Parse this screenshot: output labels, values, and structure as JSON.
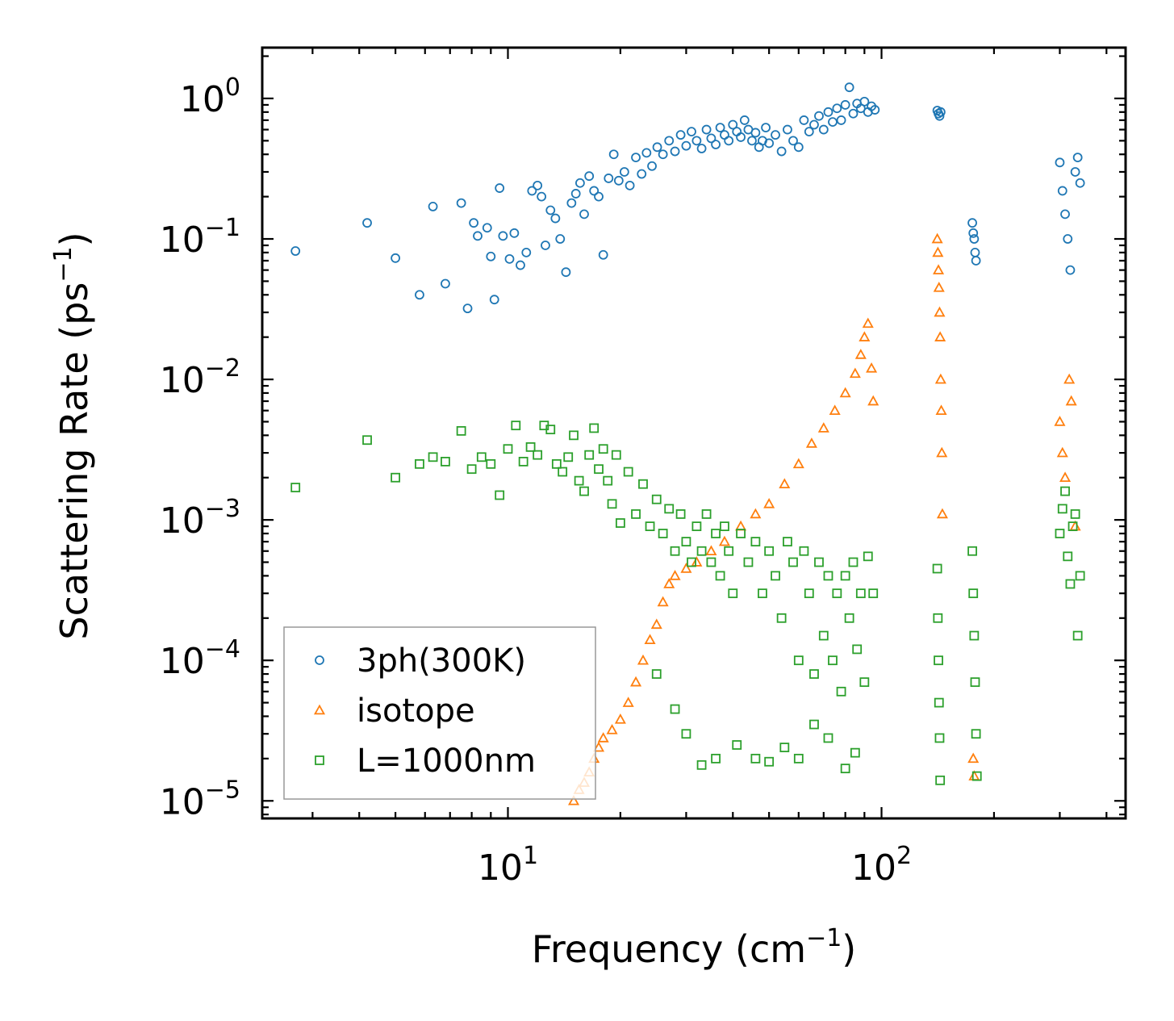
{
  "chart_data": {
    "type": "scatter",
    "title": "",
    "xlabel": "Frequency (cm",
    "xlabel_sup": "−1",
    "xlabel_tail": ")",
    "ylabel": "Scattering Rate (ps",
    "ylabel_sup": "−1",
    "ylabel_tail": ")",
    "xscale": "log",
    "yscale": "log",
    "xlim": [
      2.2,
      450
    ],
    "ylim": [
      7.5e-06,
      2.3
    ],
    "x_tick_labels": [
      {
        "value": 10,
        "base": "10",
        "exp": "1"
      },
      {
        "value": 100,
        "base": "10",
        "exp": "2"
      }
    ],
    "y_tick_labels": [
      {
        "value": 1,
        "base": "10",
        "exp": "0"
      },
      {
        "value": 0.1,
        "base": "10",
        "exp": "−1"
      },
      {
        "value": 0.01,
        "base": "10",
        "exp": "−2"
      },
      {
        "value": 0.001,
        "base": "10",
        "exp": "−3"
      },
      {
        "value": 0.0001,
        "base": "10",
        "exp": "−4"
      },
      {
        "value": 1e-05,
        "base": "10",
        "exp": "−5"
      }
    ],
    "legend_position": "lower-left",
    "series": [
      {
        "name": "3ph(300K)",
        "marker": "circle",
        "color": "#1f77b4",
        "points": [
          [
            2.7,
            0.082
          ],
          [
            4.2,
            0.13
          ],
          [
            5.0,
            0.073
          ],
          [
            5.8,
            0.04
          ],
          [
            6.3,
            0.17
          ],
          [
            6.8,
            0.048
          ],
          [
            7.5,
            0.18
          ],
          [
            7.8,
            0.032
          ],
          [
            8.1,
            0.13
          ],
          [
            8.3,
            0.105
          ],
          [
            8.8,
            0.12
          ],
          [
            9.0,
            0.075
          ],
          [
            9.2,
            0.037
          ],
          [
            9.5,
            0.23
          ],
          [
            9.7,
            0.105
          ],
          [
            10.1,
            0.072
          ],
          [
            10.4,
            0.11
          ],
          [
            10.8,
            0.065
          ],
          [
            11.2,
            0.08
          ],
          [
            11.6,
            0.22
          ],
          [
            12.0,
            0.24
          ],
          [
            12.3,
            0.2
          ],
          [
            12.6,
            0.09
          ],
          [
            13.0,
            0.16
          ],
          [
            13.4,
            0.14
          ],
          [
            13.8,
            0.1
          ],
          [
            14.3,
            0.058
          ],
          [
            14.8,
            0.18
          ],
          [
            15.2,
            0.21
          ],
          [
            15.6,
            0.25
          ],
          [
            16.0,
            0.15
          ],
          [
            16.5,
            0.28
          ],
          [
            17.0,
            0.22
          ],
          [
            17.5,
            0.2
          ],
          [
            18.0,
            0.077
          ],
          [
            18.6,
            0.27
          ],
          [
            19.2,
            0.4
          ],
          [
            19.8,
            0.26
          ],
          [
            20.5,
            0.3
          ],
          [
            21.2,
            0.24
          ],
          [
            22.0,
            0.38
          ],
          [
            22.8,
            0.29
          ],
          [
            23.5,
            0.41
          ],
          [
            24.3,
            0.33
          ],
          [
            25.1,
            0.45
          ],
          [
            26.0,
            0.4
          ],
          [
            27.0,
            0.5
          ],
          [
            28.0,
            0.42
          ],
          [
            29.0,
            0.55
          ],
          [
            30.0,
            0.46
          ],
          [
            31.0,
            0.58
          ],
          [
            32.0,
            0.5
          ],
          [
            33.0,
            0.44
          ],
          [
            34.0,
            0.6
          ],
          [
            35.0,
            0.52
          ],
          [
            36.0,
            0.47
          ],
          [
            37.0,
            0.62
          ],
          [
            38.0,
            0.55
          ],
          [
            39.0,
            0.5
          ],
          [
            40.0,
            0.65
          ],
          [
            41.0,
            0.58
          ],
          [
            42.0,
            0.53
          ],
          [
            43.0,
            0.7
          ],
          [
            44.0,
            0.6
          ],
          [
            45.0,
            0.5
          ],
          [
            46.0,
            0.57
          ],
          [
            47.0,
            0.45
          ],
          [
            48.0,
            0.5
          ],
          [
            49.0,
            0.62
          ],
          [
            50.0,
            0.48
          ],
          [
            52.0,
            0.55
          ],
          [
            54.0,
            0.42
          ],
          [
            56.0,
            0.6
          ],
          [
            58.0,
            0.5
          ],
          [
            60.0,
            0.45
          ],
          [
            62.0,
            0.7
          ],
          [
            64.0,
            0.58
          ],
          [
            66.0,
            0.65
          ],
          [
            68.0,
            0.75
          ],
          [
            70.0,
            0.6
          ],
          [
            72.0,
            0.8
          ],
          [
            74.0,
            0.68
          ],
          [
            76.0,
            0.85
          ],
          [
            78.0,
            0.7
          ],
          [
            80.0,
            0.9
          ],
          [
            82.0,
            1.2
          ],
          [
            84.0,
            0.78
          ],
          [
            86.0,
            0.92
          ],
          [
            88.0,
            0.85
          ],
          [
            90.0,
            0.95
          ],
          [
            92.0,
            0.8
          ],
          [
            94.0,
            0.88
          ],
          [
            96.0,
            0.83
          ],
          [
            141,
            0.82
          ],
          [
            142,
            0.78
          ],
          [
            143,
            0.75
          ],
          [
            144,
            0.8
          ],
          [
            175,
            0.13
          ],
          [
            176,
            0.11
          ],
          [
            177,
            0.1
          ],
          [
            178,
            0.08
          ],
          [
            179,
            0.07
          ],
          [
            300,
            0.35
          ],
          [
            305,
            0.22
          ],
          [
            310,
            0.15
          ],
          [
            315,
            0.1
          ],
          [
            320,
            0.06
          ],
          [
            330,
            0.3
          ],
          [
            335,
            0.38
          ],
          [
            340,
            0.25
          ]
        ]
      },
      {
        "name": "isotope",
        "marker": "triangle",
        "color": "#ff7f0e",
        "points": [
          [
            15.0,
            1e-05
          ],
          [
            15.5,
            1.2e-05
          ],
          [
            16.0,
            1.35e-05
          ],
          [
            16.5,
            1.6e-05
          ],
          [
            17.0,
            2e-05
          ],
          [
            17.5,
            2.4e-05
          ],
          [
            18.0,
            2.8e-05
          ],
          [
            19.0,
            3.2e-05
          ],
          [
            20.0,
            3.8e-05
          ],
          [
            21.0,
            5e-05
          ],
          [
            22.0,
            7e-05
          ],
          [
            23.0,
            0.0001
          ],
          [
            24.0,
            0.00014
          ],
          [
            25.0,
            0.00018
          ],
          [
            26.0,
            0.00026
          ],
          [
            27.0,
            0.00035
          ],
          [
            28.0,
            0.0004
          ],
          [
            30.0,
            0.00045
          ],
          [
            32.0,
            0.0005
          ],
          [
            35.0,
            0.0006
          ],
          [
            38.0,
            0.0007
          ],
          [
            42.0,
            0.0009
          ],
          [
            46.0,
            0.0011
          ],
          [
            50.0,
            0.0013
          ],
          [
            55.0,
            0.0018
          ],
          [
            60.0,
            0.0025
          ],
          [
            65.0,
            0.0035
          ],
          [
            70.0,
            0.0045
          ],
          [
            75.0,
            0.006
          ],
          [
            80.0,
            0.008
          ],
          [
            85.0,
            0.011
          ],
          [
            88.0,
            0.015
          ],
          [
            90.0,
            0.02
          ],
          [
            92.0,
            0.025
          ],
          [
            94.0,
            0.012
          ],
          [
            95.0,
            0.007
          ],
          [
            141,
            0.1
          ],
          [
            141.5,
            0.08
          ],
          [
            142,
            0.06
          ],
          [
            142.5,
            0.045
          ],
          [
            143,
            0.03
          ],
          [
            143.5,
            0.02
          ],
          [
            144,
            0.01
          ],
          [
            144.5,
            0.006
          ],
          [
            145,
            0.003
          ],
          [
            145.5,
            0.0011
          ],
          [
            176,
            2e-05
          ],
          [
            177,
            1.5e-05
          ],
          [
            300,
            0.005
          ],
          [
            305,
            0.003
          ],
          [
            310,
            0.002
          ],
          [
            318,
            0.01
          ],
          [
            322,
            0.007
          ],
          [
            330,
            0.0009
          ]
        ]
      },
      {
        "name": "L=1000nm",
        "marker": "square",
        "color": "#2ca02c",
        "points": [
          [
            2.7,
            0.0017
          ],
          [
            4.2,
            0.0037
          ],
          [
            5.0,
            0.002
          ],
          [
            5.8,
            0.0025
          ],
          [
            6.3,
            0.0028
          ],
          [
            6.8,
            0.0026
          ],
          [
            7.5,
            0.0043
          ],
          [
            8.0,
            0.0023
          ],
          [
            8.5,
            0.0028
          ],
          [
            9.0,
            0.0025
          ],
          [
            9.5,
            0.0015
          ],
          [
            10.0,
            0.0032
          ],
          [
            10.5,
            0.0047
          ],
          [
            11.0,
            0.0026
          ],
          [
            11.5,
            0.0033
          ],
          [
            12.0,
            0.0029
          ],
          [
            12.5,
            0.0047
          ],
          [
            13.0,
            0.0044
          ],
          [
            13.5,
            0.0025
          ],
          [
            14.0,
            0.0022
          ],
          [
            14.5,
            0.0028
          ],
          [
            15.0,
            0.004
          ],
          [
            15.5,
            0.0019
          ],
          [
            16.0,
            0.0016
          ],
          [
            16.5,
            0.0029
          ],
          [
            17.0,
            0.0045
          ],
          [
            17.5,
            0.0023
          ],
          [
            18.0,
            0.0032
          ],
          [
            18.5,
            0.0019
          ],
          [
            19.0,
            0.0013
          ],
          [
            19.5,
            0.0029
          ],
          [
            20.0,
            0.00095
          ],
          [
            21.0,
            0.0022
          ],
          [
            22.0,
            0.0011
          ],
          [
            23.0,
            0.0018
          ],
          [
            24.0,
            0.0009
          ],
          [
            25.0,
            0.0014
          ],
          [
            26.0,
            0.0008
          ],
          [
            27.0,
            0.0012
          ],
          [
            28.0,
            0.0006
          ],
          [
            29.0,
            0.0011
          ],
          [
            30.0,
            0.0007
          ],
          [
            31.0,
            0.0005
          ],
          [
            32.0,
            0.0009
          ],
          [
            33.0,
            0.0006
          ],
          [
            34.0,
            0.0011
          ],
          [
            35.0,
            0.0005
          ],
          [
            36.0,
            0.0008
          ],
          [
            37.0,
            0.0004
          ],
          [
            38.0,
            0.0009
          ],
          [
            39.0,
            0.0006
          ],
          [
            40.0,
            0.0003
          ],
          [
            42.0,
            0.0008
          ],
          [
            44.0,
            0.0005
          ],
          [
            46.0,
            0.0007
          ],
          [
            48.0,
            0.0003
          ],
          [
            50.0,
            0.0006
          ],
          [
            52.0,
            0.0004
          ],
          [
            54.0,
            0.0002
          ],
          [
            56.0,
            0.0007
          ],
          [
            58.0,
            0.0005
          ],
          [
            60.0,
            0.0001
          ],
          [
            62.0,
            0.0006
          ],
          [
            64.0,
            0.0003
          ],
          [
            66.0,
            8e-05
          ],
          [
            68.0,
            0.0005
          ],
          [
            70.0,
            0.00015
          ],
          [
            72.0,
            0.0004
          ],
          [
            74.0,
            0.0001
          ],
          [
            76.0,
            0.0003
          ],
          [
            78.0,
            6e-05
          ],
          [
            80.0,
            0.0004
          ],
          [
            82.0,
            0.0002
          ],
          [
            84.0,
            0.0005
          ],
          [
            86.0,
            0.00012
          ],
          [
            88.0,
            0.0003
          ],
          [
            90.0,
            7e-05
          ],
          [
            92.0,
            0.00055
          ],
          [
            95.0,
            0.0003
          ],
          [
            25.0,
            8e-05
          ],
          [
            28.0,
            4.5e-05
          ],
          [
            30.0,
            3e-05
          ],
          [
            33.0,
            1.8e-05
          ],
          [
            36.0,
            2e-05
          ],
          [
            41.0,
            2.5e-05
          ],
          [
            46.0,
            2e-05
          ],
          [
            50.0,
            1.9e-05
          ],
          [
            55.0,
            2.4e-05
          ],
          [
            60.0,
            2e-05
          ],
          [
            66.0,
            3.5e-05
          ],
          [
            72.0,
            2.8e-05
          ],
          [
            80.0,
            1.7e-05
          ],
          [
            85.0,
            2.2e-05
          ],
          [
            141,
            0.00045
          ],
          [
            141.5,
            0.0002
          ],
          [
            142,
            0.0001
          ],
          [
            142.5,
            5e-05
          ],
          [
            143,
            2.8e-05
          ],
          [
            143.5,
            1.4e-05
          ],
          [
            175,
            0.0006
          ],
          [
            176,
            0.0003
          ],
          [
            177,
            0.00015
          ],
          [
            178,
            7e-05
          ],
          [
            179,
            3e-05
          ],
          [
            180,
            1.5e-05
          ],
          [
            300,
            0.0008
          ],
          [
            305,
            0.0012
          ],
          [
            310,
            0.0016
          ],
          [
            315,
            0.00055
          ],
          [
            320,
            0.00035
          ],
          [
            325,
            0.0009
          ],
          [
            330,
            0.0011
          ],
          [
            335,
            0.00015
          ],
          [
            340,
            0.0004
          ]
        ]
      }
    ]
  }
}
